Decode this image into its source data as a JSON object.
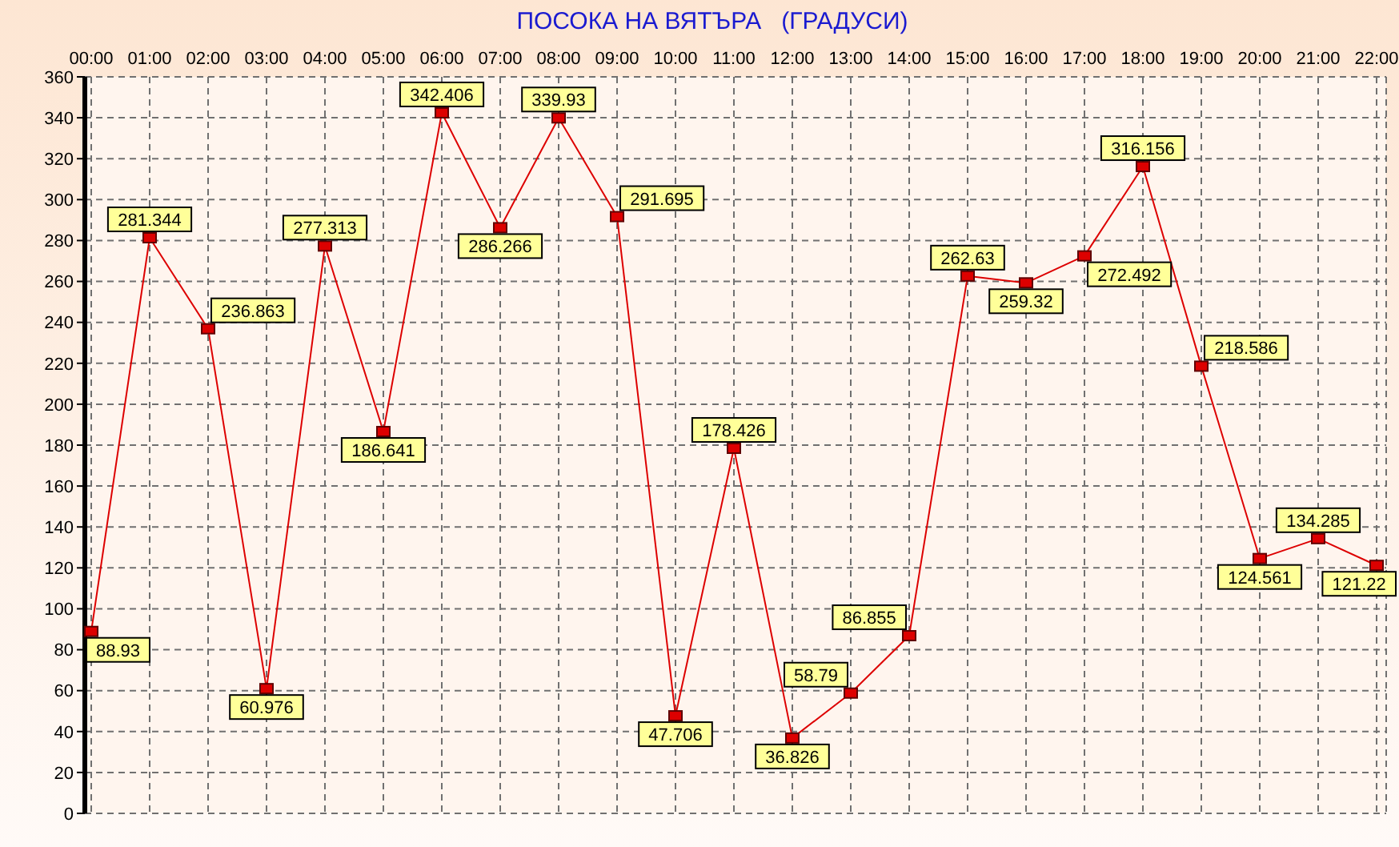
{
  "chart_data": {
    "type": "line",
    "title": "ПОСОКА НА ВЯТЪРА   (ГРАДУСИ)",
    "categories": [
      "00:00",
      "01:00",
      "02:00",
      "03:00",
      "04:00",
      "05:00",
      "06:00",
      "07:00",
      "08:00",
      "09:00",
      "10:00",
      "11:00",
      "12:00",
      "13:00",
      "14:00",
      "15:00",
      "16:00",
      "17:00",
      "18:00",
      "19:00",
      "20:00",
      "21:00",
      "22:00"
    ],
    "values": [
      88.93,
      281.344,
      236.863,
      60.976,
      277.313,
      186.641,
      342.406,
      286.266,
      339.93,
      291.695,
      47.706,
      178.426,
      36.826,
      58.79,
      86.855,
      262.63,
      259.32,
      272.492,
      316.156,
      218.586,
      124.561,
      134.285,
      121.22
    ],
    "color": "#dd0000",
    "ylim": [
      0,
      360
    ],
    "yticks": [
      0,
      20,
      40,
      60,
      80,
      100,
      120,
      140,
      160,
      180,
      200,
      220,
      240,
      260,
      280,
      300,
      320,
      340,
      360
    ],
    "grid": true,
    "marker": "square",
    "line_style": "solid",
    "data_labels": true
  }
}
